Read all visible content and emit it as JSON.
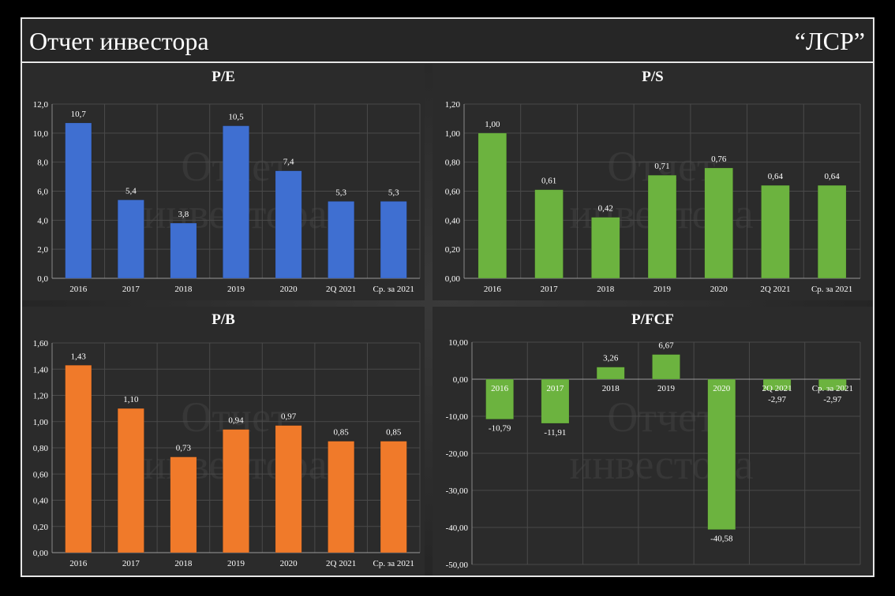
{
  "header": {
    "title": "Отчет инвестора",
    "brand": "“ЛСР”"
  },
  "watermark": {
    "line1": "Отчет",
    "line2": "инвестора"
  },
  "colors": {
    "pe": "#3f6fd1",
    "ps": "#6cb33f",
    "pb": "#f07a2a",
    "pfcf": "#6cb33f"
  },
  "chart_data": [
    {
      "id": "pe",
      "type": "bar",
      "title": "P/E",
      "categories": [
        "2016",
        "2017",
        "2018",
        "2019",
        "2020",
        "2Q 2021",
        "Ср. за 2021"
      ],
      "values": [
        10.7,
        5.4,
        3.8,
        10.5,
        7.4,
        5.3,
        5.3
      ],
      "labels": [
        "10,7",
        "5,4",
        "3,8",
        "10,5",
        "7,4",
        "5,3",
        "5,3"
      ],
      "ylim": [
        0,
        12
      ],
      "ticks": [
        "0,0",
        "2,0",
        "4,0",
        "6,0",
        "8,0",
        "10,0",
        "12,0"
      ],
      "tick_values": [
        0,
        2,
        4,
        6,
        8,
        10,
        12
      ],
      "grid": true
    },
    {
      "id": "ps",
      "type": "bar",
      "title": "P/S",
      "categories": [
        "2016",
        "2017",
        "2018",
        "2019",
        "2020",
        "2Q 2021",
        "Ср. за 2021"
      ],
      "values": [
        1.0,
        0.61,
        0.42,
        0.71,
        0.76,
        0.64,
        0.64
      ],
      "labels": [
        "1,00",
        "0,61",
        "0,42",
        "0,71",
        "0,76",
        "0,64",
        "0,64"
      ],
      "ylim": [
        0,
        1.2
      ],
      "ticks": [
        "0,00",
        "0,20",
        "0,40",
        "0,60",
        "0,80",
        "1,00",
        "1,20"
      ],
      "tick_values": [
        0,
        0.2,
        0.4,
        0.6,
        0.8,
        1.0,
        1.2
      ],
      "grid": true
    },
    {
      "id": "pb",
      "type": "bar",
      "title": "P/B",
      "categories": [
        "2016",
        "2017",
        "2018",
        "2019",
        "2020",
        "2Q 2021",
        "Ср. за 2021"
      ],
      "values": [
        1.43,
        1.1,
        0.73,
        0.94,
        0.97,
        0.85,
        0.85
      ],
      "labels": [
        "1,43",
        "1,10",
        "0,73",
        "0,94",
        "0,97",
        "0,85",
        "0,85"
      ],
      "ylim": [
        0,
        1.6
      ],
      "ticks": [
        "0,00",
        "0,20",
        "0,40",
        "0,60",
        "0,80",
        "1,00",
        "1,20",
        "1,40",
        "1,60"
      ],
      "tick_values": [
        0,
        0.2,
        0.4,
        0.6,
        0.8,
        1.0,
        1.2,
        1.4,
        1.6
      ],
      "grid": true
    },
    {
      "id": "pfcf",
      "type": "bar",
      "title": "P/FCF",
      "categories": [
        "2016",
        "2017",
        "2018",
        "2019",
        "2020",
        "2Q 2021",
        "Ср. за 2021"
      ],
      "values": [
        -10.79,
        -11.91,
        3.26,
        6.67,
        -40.58,
        -2.97,
        -2.97
      ],
      "labels": [
        "-10,79",
        "-11,91",
        "3,26",
        "6,67",
        "-40,58",
        "-2,97",
        "-2,97"
      ],
      "ylim": [
        -50,
        10
      ],
      "ticks": [
        "-50,00",
        "-40,00",
        "-30,00",
        "-20,00",
        "-10,00",
        "0,00",
        "10,00"
      ],
      "tick_values": [
        -50,
        -40,
        -30,
        -20,
        -10,
        0,
        10
      ],
      "grid": true
    }
  ]
}
